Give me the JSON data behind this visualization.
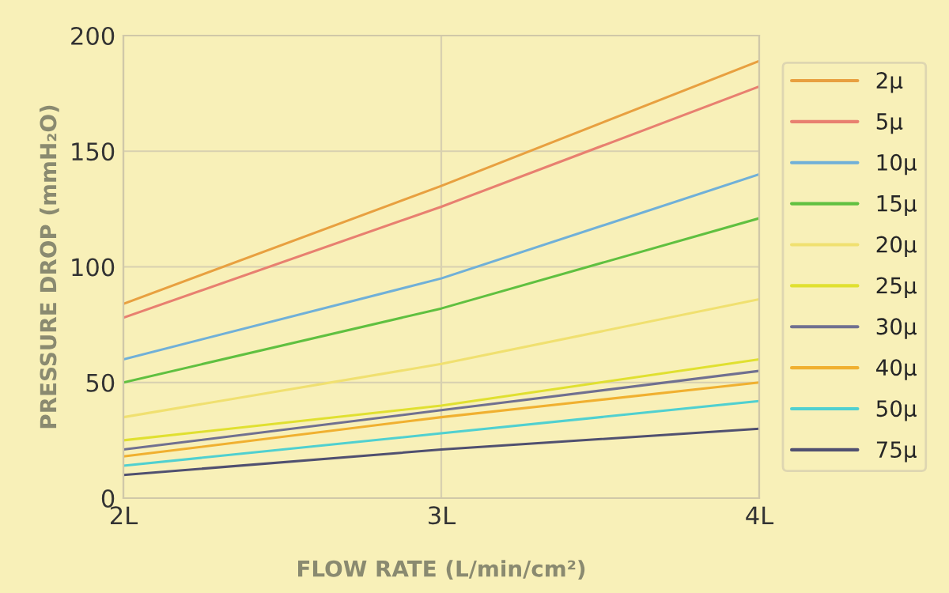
{
  "chart_data": {
    "type": "line",
    "xlabel": "FLOW RATE (L/min/cm²)",
    "ylabel": "PRESSURE DROP (mmH₂O)",
    "x": [
      2,
      3,
      4
    ],
    "xlim": [
      2,
      4
    ],
    "xticks": [
      {
        "value": 2,
        "label": "2L"
      },
      {
        "value": 3,
        "label": "3L"
      },
      {
        "value": 4,
        "label": "4L"
      }
    ],
    "ylim": [
      0,
      200
    ],
    "yticks": [
      0,
      50,
      100,
      150,
      200
    ],
    "grid": true,
    "legend": "right",
    "marker": "none",
    "line_style": "solid",
    "series": [
      {
        "name": "2μ",
        "color": "#e8a040",
        "values": [
          84,
          135,
          189
        ]
      },
      {
        "name": "5μ",
        "color": "#e88070",
        "values": [
          78,
          126,
          178
        ]
      },
      {
        "name": "10μ",
        "color": "#70b0d8",
        "values": [
          60,
          95,
          140
        ]
      },
      {
        "name": "15μ",
        "color": "#60c040",
        "values": [
          50,
          82,
          121
        ]
      },
      {
        "name": "20μ",
        "color": "#f0e070",
        "values": [
          35,
          58,
          86
        ]
      },
      {
        "name": "25μ",
        "color": "#e0e030",
        "values": [
          25,
          40,
          60
        ]
      },
      {
        "name": "30μ",
        "color": "#707090",
        "values": [
          21,
          38,
          55
        ]
      },
      {
        "name": "40μ",
        "color": "#f0b030",
        "values": [
          18,
          35,
          50
        ]
      },
      {
        "name": "50μ",
        "color": "#50d0d0",
        "values": [
          14,
          28,
          42
        ]
      },
      {
        "name": "75μ",
        "color": "#505070",
        "values": [
          10,
          21,
          30
        ]
      }
    ]
  }
}
